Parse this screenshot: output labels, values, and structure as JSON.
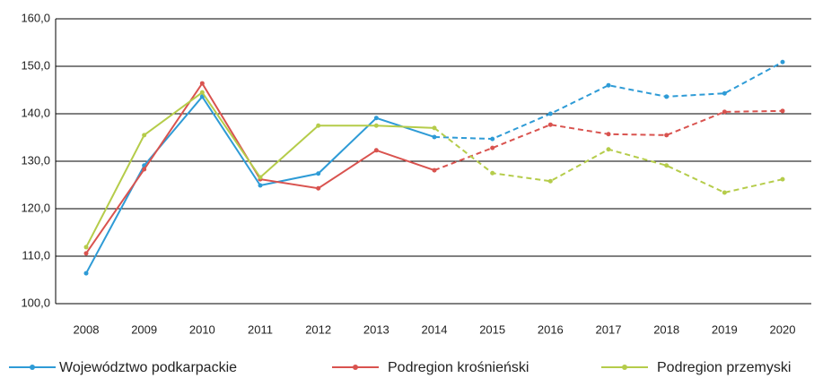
{
  "chart_data": {
    "type": "line",
    "categories": [
      "2008",
      "2009",
      "2010",
      "2011",
      "2012",
      "2013",
      "2014",
      "2015",
      "2016",
      "2017",
      "2018",
      "2019",
      "2020"
    ],
    "dashed_from": "2014",
    "ylim": [
      100,
      160
    ],
    "yticks": [
      {
        "value": 100,
        "label": "100,0"
      },
      {
        "value": 110,
        "label": "110,0"
      },
      {
        "value": 120,
        "label": "120,0"
      },
      {
        "value": 130,
        "label": "130,0"
      },
      {
        "value": 140,
        "label": "140,0"
      },
      {
        "value": 150,
        "label": "150,0"
      },
      {
        "value": 160,
        "label": "160,0"
      }
    ],
    "grid": true,
    "legend": "bottom",
    "series": [
      {
        "name": "Województwo podkarpackie",
        "color": "#2e9bd6",
        "values": [
          106.4,
          129.1,
          143.6,
          124.9,
          127.4,
          139.1,
          135.1,
          134.7,
          140.0,
          146.0,
          143.6,
          144.3,
          150.9
        ]
      },
      {
        "name": "Podregion krośnieński",
        "color": "#d9534f",
        "values": [
          110.6,
          128.3,
          146.4,
          126.2,
          124.3,
          132.3,
          128.1,
          132.8,
          137.7,
          135.7,
          135.5,
          140.4,
          140.6
        ]
      },
      {
        "name": "Podregion przemyski",
        "color": "#b5cc4a",
        "values": [
          111.9,
          135.5,
          144.5,
          126.6,
          137.5,
          137.5,
          137.0,
          127.5,
          125.8,
          132.5,
          129.1,
          123.4,
          126.2
        ]
      }
    ]
  }
}
